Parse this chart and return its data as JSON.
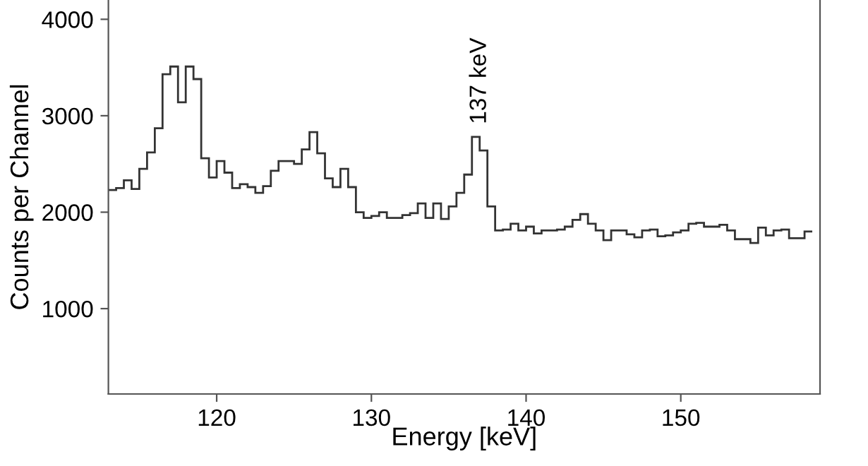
{
  "chart_data": {
    "type": "histogram",
    "xlabel": "Energy [keV]",
    "ylabel": "Counts per Channel",
    "bins": [
      113,
      113.5,
      114,
      114.5,
      115,
      115.5,
      116,
      116.5,
      117,
      117.5,
      118,
      118.5,
      119,
      119.5,
      120,
      120.5,
      121,
      121.5,
      122,
      122.5,
      123,
      123.5,
      124,
      124.5,
      125,
      125.5,
      126,
      126.5,
      127,
      127.5,
      128,
      128.5,
      129,
      129.5,
      130,
      130.5,
      131,
      131.5,
      132,
      132.5,
      133,
      133.5,
      134,
      134.5,
      135,
      135.5,
      136,
      136.5,
      137,
      137.5,
      138,
      138.5,
      139,
      139.5,
      140,
      140.5,
      141,
      141.5,
      142,
      142.5,
      143,
      143.5,
      144,
      144.5,
      145,
      145.5,
      146,
      146.5,
      147,
      147.5,
      148,
      148.5,
      149,
      149.5,
      150,
      150.5,
      151,
      151.5,
      152,
      152.5,
      153,
      153.5,
      154,
      154.5,
      155,
      155.5,
      156,
      156.5,
      157,
      157.5,
      158,
      158.5
    ],
    "values": [
      2230,
      2250,
      2330,
      2240,
      2450,
      2620,
      2870,
      3430,
      3510,
      3140,
      3510,
      3380,
      2560,
      2360,
      2530,
      2410,
      2250,
      2290,
      2260,
      2200,
      2270,
      2430,
      2530,
      2530,
      2500,
      2650,
      2830,
      2610,
      2350,
      2260,
      2450,
      2260,
      2000,
      1940,
      1960,
      2000,
      1940,
      1940,
      1970,
      1990,
      2090,
      1940,
      2090,
      1930,
      2060,
      2200,
      2390,
      2780,
      2640,
      2060,
      1810,
      1820,
      1880,
      1810,
      1850,
      1780,
      1810,
      1810,
      1820,
      1850,
      1920,
      1980,
      1880,
      1810,
      1710,
      1810,
      1810,
      1770,
      1740,
      1810,
      1820,
      1750,
      1760,
      1790,
      1810,
      1880,
      1890,
      1850,
      1850,
      1870,
      1810,
      1720,
      1720,
      1680,
      1840,
      1760,
      1810,
      1820,
      1730,
      1730,
      1800
    ],
    "color": "#333333",
    "xlim": [
      113,
      159
    ],
    "ylim": [
      115,
      4200
    ],
    "xticks": [
      120,
      130,
      140,
      150
    ],
    "yticks": [
      1000,
      2000,
      3000,
      4000
    ],
    "grid": false,
    "legend": false,
    "annotations": [
      "137 keV"
    ]
  }
}
